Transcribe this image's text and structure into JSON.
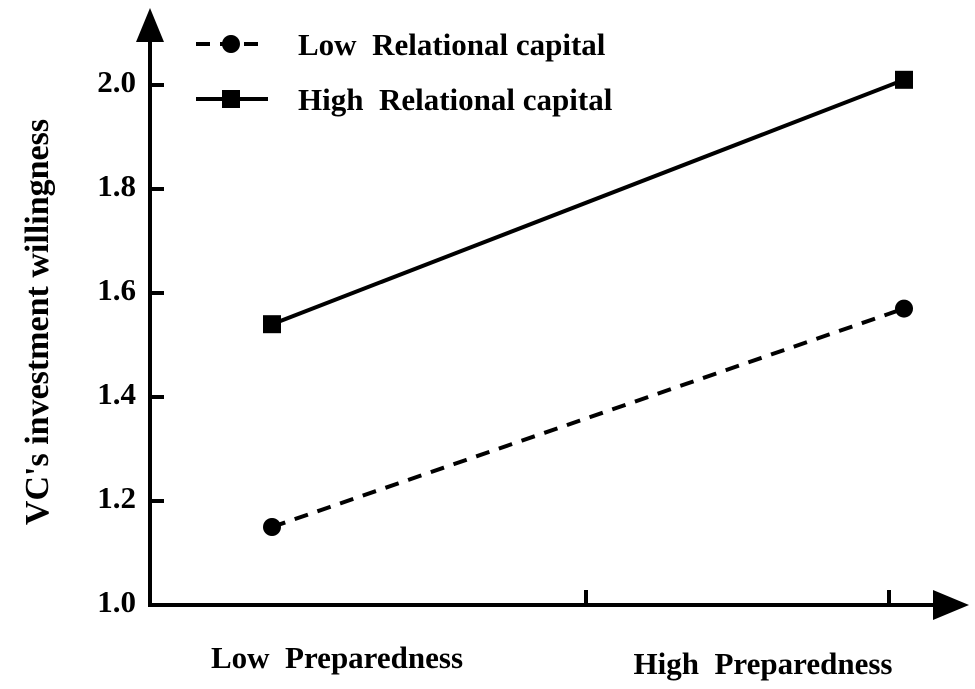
{
  "chart_data": {
    "type": "line",
    "categories": [
      "Low  Preparedness",
      "High  Preparedness"
    ],
    "series": [
      {
        "name": "Low  Relational capital",
        "values": [
          1.15,
          1.57
        ],
        "line_style": "dashed",
        "marker": "circle"
      },
      {
        "name": "High  Relational capital",
        "values": [
          1.54,
          2.01
        ],
        "line_style": "solid",
        "marker": "square"
      }
    ],
    "ylabel": "VC's investment willingness",
    "xlabel": "",
    "ylim": [
      1.0,
      2.0
    ],
    "yticks": [
      "1.0",
      "1.2",
      "1.4",
      "1.6",
      "1.8",
      "2.0"
    ],
    "grid": false,
    "legend_position": "top-left",
    "color": "#000000"
  }
}
